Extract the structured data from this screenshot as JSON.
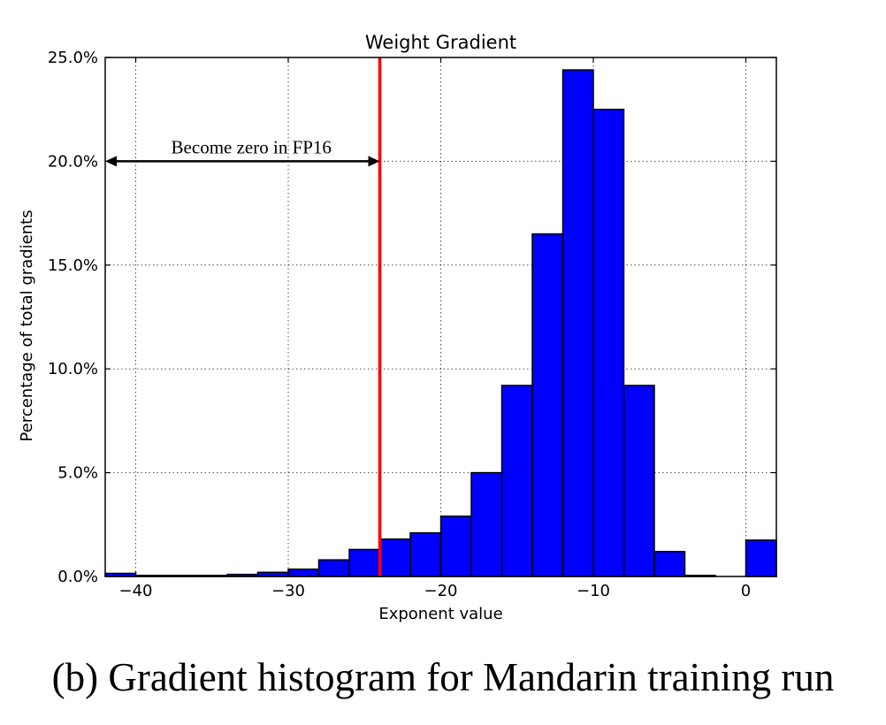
{
  "chart_data": {
    "type": "bar",
    "title": "Weight Gradient",
    "xlabel": "Exponent value",
    "ylabel": "Percentage of total gradients",
    "xlim": [
      -42,
      2
    ],
    "ylim": [
      0,
      25
    ],
    "grid": true,
    "bin_width": 2,
    "bins": [
      {
        "x": -42,
        "value": 0.15
      },
      {
        "x": -40,
        "value": 0.05
      },
      {
        "x": -38,
        "value": 0.05
      },
      {
        "x": -36,
        "value": 0.05
      },
      {
        "x": -34,
        "value": 0.1
      },
      {
        "x": -32,
        "value": 0.2
      },
      {
        "x": -30,
        "value": 0.35
      },
      {
        "x": -28,
        "value": 0.8
      },
      {
        "x": -26,
        "value": 1.3
      },
      {
        "x": -24,
        "value": 1.8
      },
      {
        "x": -22,
        "value": 2.1
      },
      {
        "x": -20,
        "value": 2.9
      },
      {
        "x": -18,
        "value": 5.0
      },
      {
        "x": -16,
        "value": 9.2
      },
      {
        "x": -14,
        "value": 16.5
      },
      {
        "x": -12,
        "value": 24.4
      },
      {
        "x": -10,
        "value": 22.5
      },
      {
        "x": -8,
        "value": 9.2
      },
      {
        "x": -6,
        "value": 1.2
      },
      {
        "x": -4,
        "value": 0.05
      },
      {
        "x": -2,
        "value": 0.0
      },
      {
        "x": 0,
        "value": 1.75
      }
    ],
    "x_ticks": [
      {
        "value": -40,
        "label": "−40"
      },
      {
        "value": -30,
        "label": "−30"
      },
      {
        "value": -20,
        "label": "−20"
      },
      {
        "value": -10,
        "label": "−10"
      },
      {
        "value": 0,
        "label": "0"
      }
    ],
    "y_ticks": [
      {
        "value": 0,
        "label": "0.0%"
      },
      {
        "value": 5,
        "label": "5.0%"
      },
      {
        "value": 10,
        "label": "10.0%"
      },
      {
        "value": 15,
        "label": "15.0%"
      },
      {
        "value": 20,
        "label": "20.0%"
      },
      {
        "value": 25,
        "label": "25.0%"
      }
    ],
    "threshold_line": {
      "x": -24,
      "color": "#ff0000"
    },
    "annotation": {
      "text": "Become zero in FP16",
      "x_from": -42,
      "x_to": -24,
      "y": 20
    },
    "bar_color": "#0000ff"
  },
  "caption": "(b) Gradient histogram for Mandarin training run"
}
